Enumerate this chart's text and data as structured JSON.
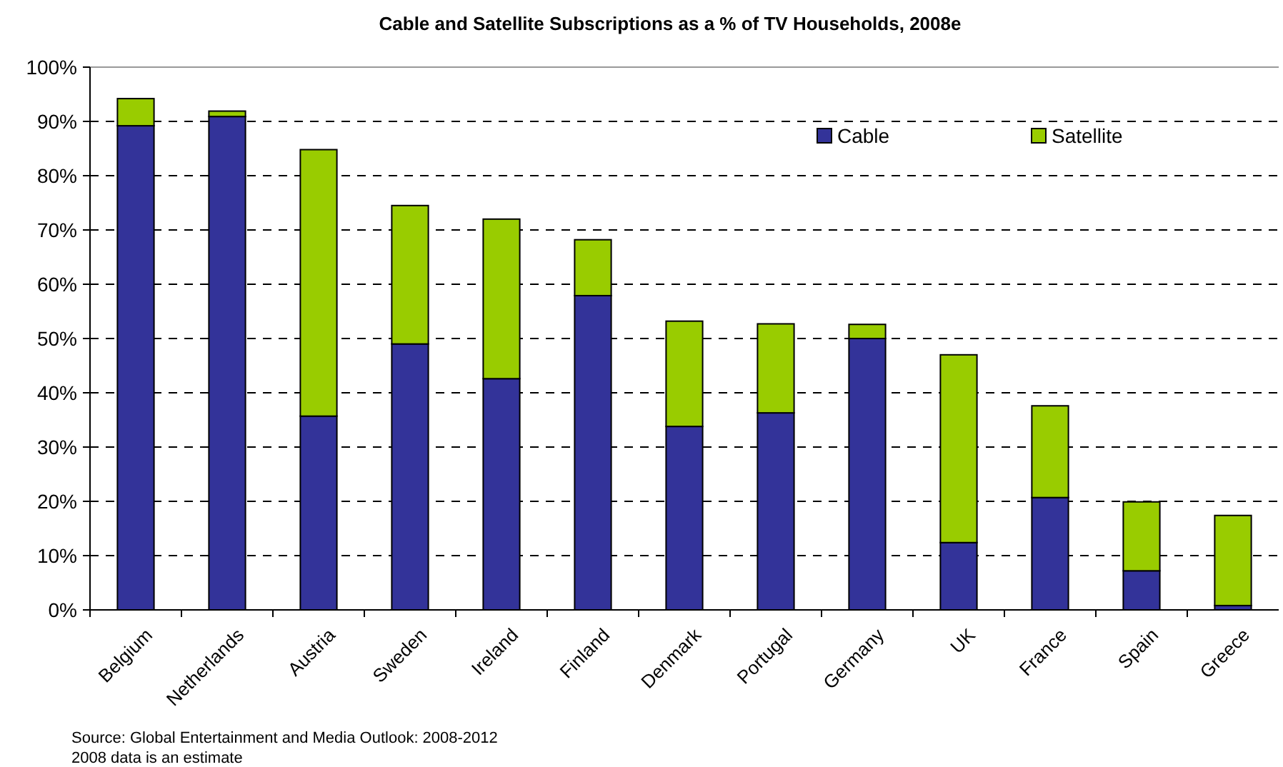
{
  "chart_data": {
    "type": "bar",
    "title": "Cable and Satellite Subscriptions as a % of TV Households, 2008e",
    "categories": [
      "Belgium",
      "Netherlands",
      "Austria",
      "Sweden",
      "Ireland",
      "Finland",
      "Denmark",
      "Portugal",
      "Germany",
      "UK",
      "France",
      "Spain",
      "Greece"
    ],
    "series": [
      {
        "name": "Cable",
        "color": "#333399",
        "values": [
          89.2,
          90.9,
          35.7,
          49.0,
          42.6,
          57.9,
          33.8,
          36.3,
          50.0,
          12.4,
          20.7,
          7.2,
          0.8
        ]
      },
      {
        "name": "Satellite",
        "color": "#99cc00",
        "values": [
          5.0,
          1.0,
          49.1,
          25.5,
          29.4,
          10.3,
          19.4,
          16.4,
          2.6,
          34.6,
          16.9,
          12.7,
          16.6
        ]
      }
    ],
    "stacked": true,
    "ylim": [
      0,
      100
    ],
    "yticks": [
      {
        "value": 0,
        "label": "0%"
      },
      {
        "value": 10,
        "label": "10%"
      },
      {
        "value": 20,
        "label": "20%"
      },
      {
        "value": 30,
        "label": "30%"
      },
      {
        "value": 40,
        "label": "40%"
      },
      {
        "value": 50,
        "label": "50%"
      },
      {
        "value": 60,
        "label": "60%"
      },
      {
        "value": 70,
        "label": "70%"
      },
      {
        "value": 80,
        "label": "80%"
      },
      {
        "value": 90,
        "label": "90%"
      },
      {
        "value": 100,
        "label": "100%"
      }
    ],
    "grid": "y",
    "legend": "top right",
    "annotations": [
      "Source: Global Entertainment and Media Outlook: 2008-2012",
      "2008 data is an estimate"
    ]
  }
}
